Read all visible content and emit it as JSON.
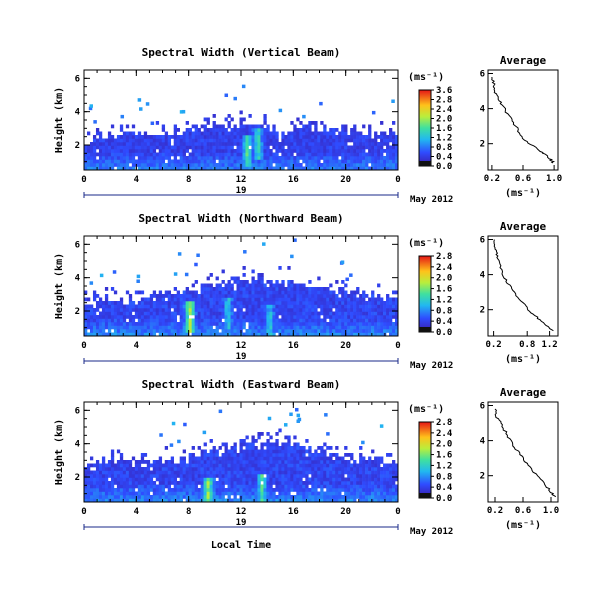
{
  "date_label": "May 2012",
  "xlabel_bottom": "Local Time",
  "chart_data": [
    {
      "type": "heatmap",
      "title": "Spectral Width (Vertical Beam)",
      "ylabel": "Height (km)",
      "xlabel": "19",
      "x_ticks": [
        "0",
        "4",
        "8",
        "12",
        "16",
        "20",
        "0"
      ],
      "xlim": [
        0,
        24
      ],
      "y_ticks": [
        "2",
        "4",
        "6"
      ],
      "ylim": [
        0.5,
        6.5
      ],
      "colorbar": {
        "unit": "(ms⁻¹)",
        "ticks": [
          "0.0",
          "0.4",
          "0.8",
          "1.2",
          "1.6",
          "2.0",
          "2.4",
          "2.8",
          "3.6"
        ],
        "range": [
          0,
          3.2
        ]
      },
      "echo_top_km": [
        2.1,
        2.2,
        2.3,
        2.5,
        2.6,
        2.4,
        2.4,
        2.6,
        2.8,
        2.9,
        3.0,
        3.0,
        3.1,
        3.2,
        3.1,
        2.6,
        2.7,
        3.0,
        2.9,
        2.7,
        2.7,
        2.6,
        2.5,
        2.6,
        2.5
      ],
      "hot_spots": [
        {
          "t": 12.5,
          "h": 1.6,
          "v": 1.7
        },
        {
          "t": 13.3,
          "h": 2.0,
          "v": 1.5
        }
      ],
      "average": {
        "title": "Average",
        "xlabel": "(ms⁻¹)",
        "x_ticks": [
          "0.2",
          "0.6",
          "1.0"
        ],
        "xlim": [
          0.15,
          1.05
        ],
        "y_ticks": [
          "2",
          "4",
          "6"
        ],
        "ylim": [
          0.5,
          6.2
        ],
        "profile": [
          [
            1.0,
            0.9
          ],
          [
            0.95,
            1.1
          ],
          [
            0.9,
            1.3
          ],
          [
            0.85,
            1.5
          ],
          [
            0.75,
            1.8
          ],
          [
            0.62,
            2.2
          ],
          [
            0.55,
            2.7
          ],
          [
            0.48,
            3.2
          ],
          [
            0.4,
            3.7
          ],
          [
            0.33,
            4.2
          ],
          [
            0.28,
            4.6
          ],
          [
            0.24,
            5.0
          ],
          [
            0.22,
            5.4
          ],
          [
            0.2,
            5.8
          ]
        ]
      }
    },
    {
      "type": "heatmap",
      "title": "Spectral Width (Northward Beam)",
      "ylabel": "Height (km)",
      "xlabel": "19",
      "x_ticks": [
        "0",
        "4",
        "8",
        "12",
        "16",
        "20",
        "0"
      ],
      "xlim": [
        0,
        24
      ],
      "y_ticks": [
        "2",
        "4",
        "6"
      ],
      "ylim": [
        0.5,
        6.5
      ],
      "colorbar": {
        "unit": "(ms⁻¹)",
        "ticks": [
          "0.0",
          "0.4",
          "0.8",
          "1.2",
          "1.6",
          "2.0",
          "2.4",
          "2.8"
        ],
        "range": [
          0,
          3.0
        ]
      },
      "echo_top_km": [
        2.4,
        2.5,
        2.6,
        2.6,
        2.7,
        2.7,
        2.8,
        3.0,
        3.2,
        3.4,
        3.5,
        3.6,
        3.7,
        3.8,
        3.6,
        3.8,
        3.6,
        3.5,
        3.3,
        3.0,
        3.0,
        2.9,
        2.8,
        2.7,
        2.6
      ],
      "hot_spots": [
        {
          "t": 8.1,
          "h": 1.6,
          "v": 1.9
        },
        {
          "t": 11.0,
          "h": 1.8,
          "v": 1.2
        },
        {
          "t": 14.2,
          "h": 1.4,
          "v": 1.2
        }
      ],
      "average": {
        "title": "Average",
        "xlabel": "(ms⁻¹)",
        "x_ticks": [
          "0.2",
          "0.8",
          "1.2"
        ],
        "xlim": [
          0.1,
          1.35
        ],
        "y_ticks": [
          "2",
          "4",
          "6"
        ],
        "ylim": [
          0.5,
          6.2
        ],
        "profile": [
          [
            1.25,
            0.8
          ],
          [
            1.15,
            1.1
          ],
          [
            1.0,
            1.5
          ],
          [
            0.85,
            1.9
          ],
          [
            0.75,
            2.3
          ],
          [
            0.6,
            2.8
          ],
          [
            0.5,
            3.3
          ],
          [
            0.4,
            3.8
          ],
          [
            0.32,
            4.4
          ],
          [
            0.28,
            4.9
          ],
          [
            0.24,
            5.3
          ],
          [
            0.22,
            5.7
          ],
          [
            0.21,
            6.0
          ]
        ]
      }
    },
    {
      "type": "heatmap",
      "title": "Spectral Width (Eastward Beam)",
      "ylabel": "Height (km)",
      "xlabel": "19",
      "x_ticks": [
        "0",
        "4",
        "8",
        "12",
        "16",
        "20",
        "0"
      ],
      "xlim": [
        0,
        24
      ],
      "y_ticks": [
        "2",
        "4",
        "6"
      ],
      "ylim": [
        0.5,
        6.5
      ],
      "colorbar": {
        "unit": "(ms⁻¹)",
        "ticks": [
          "0.0",
          "0.4",
          "0.8",
          "1.2",
          "1.6",
          "2.0",
          "2.4",
          "2.8"
        ],
        "range": [
          0,
          3.0
        ]
      },
      "echo_top_km": [
        2.5,
        2.6,
        2.7,
        2.8,
        2.8,
        2.7,
        2.8,
        3.0,
        3.1,
        3.3,
        3.5,
        3.6,
        3.8,
        3.9,
        3.7,
        4.0,
        3.8,
        3.6,
        3.5,
        3.3,
        3.1,
        3.0,
        2.8,
        2.7,
        2.6
      ],
      "hot_spots": [
        {
          "t": 9.5,
          "h": 0.9,
          "v": 1.8
        },
        {
          "t": 13.6,
          "h": 1.2,
          "v": 1.5
        }
      ],
      "average": {
        "title": "Average",
        "xlabel": "(ms⁻¹)",
        "x_ticks": [
          "0.2",
          "0.6",
          "1.0"
        ],
        "xlim": [
          0.1,
          1.1
        ],
        "y_ticks": [
          "2",
          "4",
          "6"
        ],
        "ylim": [
          0.5,
          6.2
        ],
        "profile": [
          [
            1.05,
            0.8
          ],
          [
            1.0,
            1.1
          ],
          [
            0.92,
            1.5
          ],
          [
            0.8,
            2.0
          ],
          [
            0.7,
            2.5
          ],
          [
            0.6,
            3.0
          ],
          [
            0.5,
            3.5
          ],
          [
            0.42,
            4.0
          ],
          [
            0.35,
            4.5
          ],
          [
            0.28,
            5.0
          ],
          [
            0.22,
            5.4
          ],
          [
            0.2,
            5.8
          ]
        ]
      }
    }
  ]
}
